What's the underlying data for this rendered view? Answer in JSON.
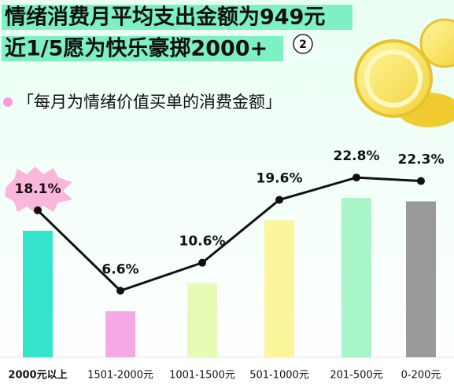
{
  "chart_data": {
    "type": "bar",
    "title": "情绪消费月平均支出金额为949元",
    "subtitle": "近1/5愿为快乐豪掷2000+",
    "badge": "2",
    "chart_label": "「每月为情绪价值买单的消费金额」",
    "categories": [
      "2000元以上",
      "1501-2000元",
      "1001-1500元",
      "501-1000元",
      "201-500元",
      "0-200元"
    ],
    "values": [
      18.1,
      6.6,
      10.6,
      19.6,
      22.8,
      22.3
    ],
    "value_labels": [
      "18.1%",
      "6.6%",
      "10.6%",
      "19.6%",
      "22.8%",
      "22.3%"
    ],
    "colors": [
      "#33e3cb",
      "#f7a8e6",
      "#e6fbb4",
      "#fbf59c",
      "#a8f5c9",
      "#9a9a9a"
    ],
    "line_color": "#111111"
  }
}
